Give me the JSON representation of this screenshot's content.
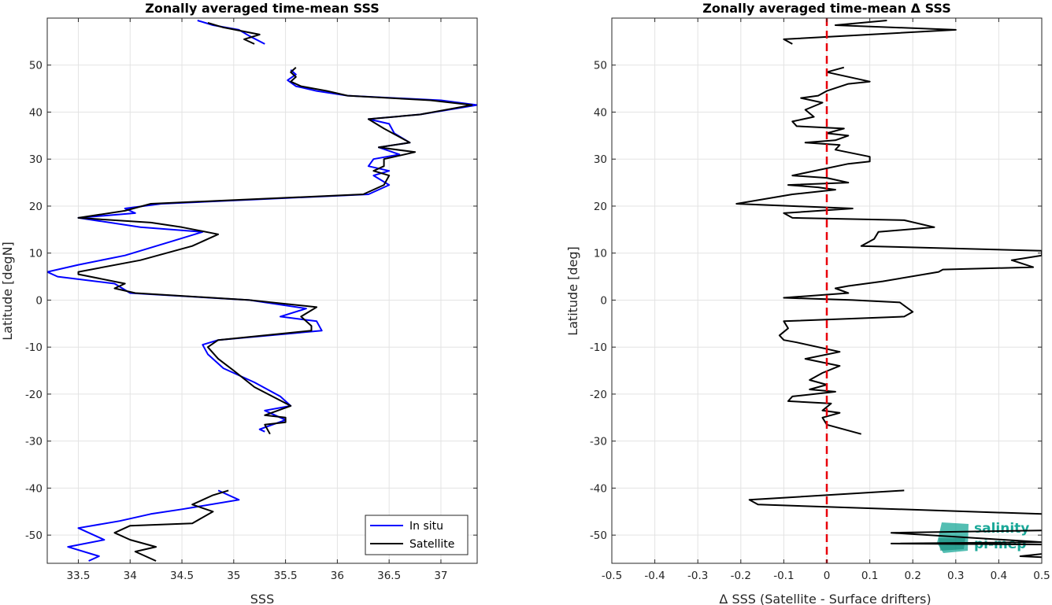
{
  "chart_data": [
    {
      "type": "line",
      "title": "Zonally averaged time-mean SSS",
      "xlabel": "SSS",
      "ylabel": "Latitude [degN]",
      "xlim": [
        33.2,
        37.35
      ],
      "ylim": [
        -56,
        60
      ],
      "xticks": [
        "33.5",
        "34",
        "34.5",
        "35",
        "35.5",
        "36",
        "36.5",
        "37"
      ],
      "xtick_values": [
        33.5,
        34,
        34.5,
        35,
        35.5,
        36,
        36.5,
        37
      ],
      "yticks": [
        "50",
        "40",
        "30",
        "20",
        "10",
        "0",
        "-10",
        "-20",
        "-30",
        "-40",
        "-50"
      ],
      "ytick_values": [
        50,
        40,
        30,
        20,
        10,
        0,
        -10,
        -20,
        -30,
        -40,
        -50
      ],
      "grid": true,
      "legend": "bottom-right",
      "series": [
        {
          "name": "In situ",
          "color": "#0000ff",
          "segments": [
            [
              [
                34.65,
                59.5
              ],
              [
                34.8,
                58.5
              ],
              [
                35.05,
                57.5
              ],
              [
                35.15,
                56.2
              ],
              [
                35.3,
                54.5
              ]
            ],
            [
              [
                35.55,
                49.0
              ],
              [
                35.6,
                48.0
              ],
              [
                35.52,
                46.8
              ],
              [
                35.6,
                45.5
              ],
              [
                35.8,
                44.5
              ],
              [
                36.1,
                43.5
              ],
              [
                37.0,
                42.5
              ],
              [
                37.35,
                41.5
              ],
              [
                36.8,
                39.5
              ],
              [
                36.3,
                38.5
              ],
              [
                36.5,
                37.5
              ],
              [
                36.55,
                35.5
              ],
              [
                36.7,
                33.5
              ],
              [
                36.4,
                32.5
              ],
              [
                36.6,
                31.0
              ],
              [
                36.35,
                30.0
              ],
              [
                36.3,
                28.5
              ],
              [
                36.5,
                27.5
              ],
              [
                36.35,
                26.5
              ],
              [
                36.5,
                24.5
              ],
              [
                36.3,
                22.5
              ],
              [
                34.3,
                20.5
              ],
              [
                33.95,
                19.5
              ],
              [
                34.05,
                18.5
              ],
              [
                33.5,
                17.5
              ],
              [
                34.1,
                15.5
              ],
              [
                34.7,
                14.5
              ],
              [
                34.4,
                12.5
              ],
              [
                33.95,
                9.5
              ],
              [
                33.5,
                7.5
              ],
              [
                33.2,
                6.0
              ],
              [
                33.3,
                5.0
              ],
              [
                33.85,
                3.5
              ],
              [
                34.0,
                1.5
              ],
              [
                35.15,
                0.0
              ],
              [
                35.7,
                -1.8
              ],
              [
                35.45,
                -3.5
              ],
              [
                35.8,
                -4.5
              ],
              [
                35.85,
                -6.5
              ],
              [
                34.85,
                -8.5
              ],
              [
                34.7,
                -9.5
              ],
              [
                34.75,
                -11.5
              ],
              [
                34.9,
                -14.5
              ],
              [
                35.2,
                -17.5
              ],
              [
                35.45,
                -20.5
              ],
              [
                35.55,
                -22.5
              ],
              [
                35.3,
                -23.5
              ],
              [
                35.5,
                -25.5
              ],
              [
                35.25,
                -27.5
              ],
              [
                35.3,
                -28.0
              ]
            ],
            [
              [
                34.85,
                -40.5
              ],
              [
                35.05,
                -42.5
              ],
              [
                34.5,
                -44.5
              ],
              [
                34.2,
                -45.5
              ],
              [
                33.9,
                -47.0
              ],
              [
                33.5,
                -48.5
              ],
              [
                33.75,
                -51.0
              ],
              [
                33.4,
                -52.5
              ],
              [
                33.7,
                -54.5
              ],
              [
                33.6,
                -55.5
              ]
            ]
          ]
        },
        {
          "name": "Satellite",
          "color": "#000000",
          "segments": [
            [
              [
                34.75,
                59.0
              ],
              [
                34.9,
                58.0
              ],
              [
                35.25,
                56.5
              ],
              [
                35.1,
                55.5
              ],
              [
                35.2,
                54.5
              ]
            ],
            [
              [
                35.6,
                49.5
              ],
              [
                35.55,
                48.5
              ],
              [
                35.6,
                47.5
              ],
              [
                35.55,
                46.5
              ],
              [
                35.65,
                45.5
              ],
              [
                35.9,
                44.5
              ],
              [
                36.1,
                43.5
              ],
              [
                36.9,
                42.5
              ],
              [
                37.3,
                41.5
              ],
              [
                36.8,
                39.5
              ],
              [
                36.3,
                38.5
              ],
              [
                36.45,
                36.5
              ],
              [
                36.7,
                33.5
              ],
              [
                36.4,
                32.5
              ],
              [
                36.75,
                31.5
              ],
              [
                36.45,
                30.0
              ],
              [
                36.45,
                28.5
              ],
              [
                36.35,
                27.5
              ],
              [
                36.5,
                26.5
              ],
              [
                36.45,
                24.5
              ],
              [
                36.25,
                22.5
              ],
              [
                34.2,
                20.5
              ],
              [
                33.95,
                19.0
              ],
              [
                33.5,
                17.5
              ],
              [
                34.2,
                16.5
              ],
              [
                34.5,
                15.5
              ],
              [
                34.85,
                14.0
              ],
              [
                34.6,
                11.5
              ],
              [
                34.1,
                8.5
              ],
              [
                33.5,
                6.0
              ],
              [
                33.5,
                5.5
              ],
              [
                33.95,
                3.5
              ],
              [
                33.85,
                2.5
              ],
              [
                34.05,
                1.5
              ],
              [
                35.15,
                0.0
              ],
              [
                35.8,
                -1.5
              ],
              [
                35.65,
                -3.5
              ],
              [
                35.75,
                -5.5
              ],
              [
                35.75,
                -6.5
              ],
              [
                34.85,
                -8.5
              ],
              [
                34.75,
                -10.0
              ],
              [
                34.85,
                -12.5
              ],
              [
                35.0,
                -15.0
              ],
              [
                35.2,
                -18.5
              ],
              [
                35.55,
                -22.5
              ],
              [
                35.3,
                -24.5
              ],
              [
                35.5,
                -25.0
              ],
              [
                35.5,
                -26.0
              ],
              [
                35.3,
                -26.5
              ],
              [
                35.35,
                -28.5
              ]
            ],
            [
              [
                34.95,
                -40.5
              ],
              [
                34.8,
                -41.5
              ],
              [
                34.6,
                -43.5
              ],
              [
                34.8,
                -45.0
              ],
              [
                34.6,
                -47.5
              ],
              [
                34.0,
                -48.0
              ],
              [
                33.85,
                -49.5
              ],
              [
                34.0,
                -51.0
              ],
              [
                34.25,
                -52.5
              ],
              [
                34.05,
                -53.5
              ],
              [
                34.25,
                -55.5
              ]
            ]
          ]
        }
      ]
    },
    {
      "type": "line",
      "title": "Zonally averaged time-mean Δ SSS",
      "xlabel": "Δ SSS (Satellite - Surface drifters)",
      "ylabel": "Latitude [deg]",
      "xlim": [
        -0.5,
        0.5
      ],
      "ylim": [
        -56,
        60
      ],
      "xticks": [
        "-0.5",
        "-0.4",
        "-0.3",
        "-0.2",
        "-0.1",
        "0",
        "0.1",
        "0.2",
        "0.3",
        "0.4",
        "0.5"
      ],
      "xtick_values": [
        -0.5,
        -0.4,
        -0.3,
        -0.2,
        -0.1,
        0,
        0.1,
        0.2,
        0.3,
        0.4,
        0.5
      ],
      "yticks": [
        "50",
        "40",
        "30",
        "20",
        "10",
        "0",
        "-10",
        "-20",
        "-30",
        "-40",
        "-50"
      ],
      "ytick_values": [
        50,
        40,
        30,
        20,
        10,
        0,
        -10,
        -20,
        -30,
        -40,
        -50
      ],
      "grid": true,
      "zero_line_color": "#e8000b",
      "series": [
        {
          "color": "#000000",
          "segments": [
            [
              [
                0.14,
                59.5
              ],
              [
                0.02,
                58.5
              ],
              [
                0.3,
                57.5
              ],
              [
                -0.1,
                55.5
              ],
              [
                -0.08,
                54.5
              ]
            ],
            [
              [
                0.04,
                49.5
              ],
              [
                0.0,
                48.5
              ],
              [
                0.05,
                47.5
              ],
              [
                0.1,
                46.5
              ],
              [
                0.05,
                46.0
              ],
              [
                0.0,
                44.5
              ],
              [
                -0.02,
                43.5
              ],
              [
                -0.06,
                43.0
              ],
              [
                -0.01,
                42.0
              ],
              [
                -0.05,
                40.5
              ],
              [
                -0.03,
                39.0
              ],
              [
                -0.08,
                38.0
              ],
              [
                -0.07,
                37.0
              ],
              [
                0.04,
                36.5
              ],
              [
                0.0,
                35.5
              ],
              [
                0.05,
                35.0
              ],
              [
                0.02,
                34.0
              ],
              [
                -0.05,
                33.5
              ],
              [
                0.03,
                33.0
              ],
              [
                0.02,
                32.0
              ],
              [
                0.1,
                30.5
              ],
              [
                0.1,
                29.5
              ],
              [
                0.05,
                29.0
              ],
              [
                -0.08,
                26.5
              ],
              [
                0.0,
                26.0
              ],
              [
                0.05,
                25.0
              ],
              [
                -0.09,
                24.5
              ],
              [
                -0.02,
                24.0
              ],
              [
                0.02,
                23.5
              ],
              [
                -0.08,
                22.5
              ],
              [
                -0.21,
                20.5
              ],
              [
                0.06,
                19.5
              ],
              [
                -0.1,
                18.5
              ],
              [
                -0.08,
                17.5
              ],
              [
                0.18,
                17.0
              ],
              [
                0.25,
                15.5
              ],
              [
                0.12,
                14.5
              ],
              [
                0.11,
                13.0
              ],
              [
                0.08,
                11.5
              ],
              [
                0.5,
                10.5
              ],
              [
                0.5,
                9.5
              ],
              [
                0.43,
                8.5
              ],
              [
                0.48,
                7.0
              ],
              [
                0.27,
                6.5
              ],
              [
                0.26,
                6.0
              ],
              [
                0.13,
                4.0
              ],
              [
                0.05,
                3.0
              ],
              [
                0.02,
                2.5
              ],
              [
                0.05,
                1.5
              ],
              [
                -0.1,
                0.5
              ],
              [
                0.06,
                0.0
              ],
              [
                0.17,
                -0.5
              ],
              [
                0.2,
                -2.5
              ],
              [
                0.18,
                -3.5
              ],
              [
                -0.1,
                -4.5
              ],
              [
                -0.09,
                -6.0
              ],
              [
                -0.11,
                -7.5
              ],
              [
                -0.1,
                -8.5
              ],
              [
                -0.07,
                -9.0
              ],
              [
                0.03,
                -11.0
              ],
              [
                -0.05,
                -12.5
              ],
              [
                0.03,
                -14.0
              ],
              [
                -0.01,
                -15.5
              ],
              [
                -0.04,
                -17.0
              ],
              [
                0.0,
                -18.0
              ],
              [
                -0.04,
                -19.0
              ],
              [
                0.02,
                -19.5
              ],
              [
                -0.08,
                -20.5
              ],
              [
                -0.09,
                -21.5
              ],
              [
                0.01,
                -22.0
              ],
              [
                -0.01,
                -23.5
              ],
              [
                0.03,
                -24.0
              ],
              [
                -0.01,
                -25.0
              ],
              [
                0.0,
                -26.5
              ],
              [
                0.08,
                -28.5
              ]
            ],
            [
              [
                0.18,
                -40.5
              ],
              [
                -0.18,
                -42.5
              ],
              [
                -0.16,
                -43.5
              ],
              [
                0.5,
                -45.5
              ]
            ],
            [
              [
                0.5,
                -49.0
              ],
              [
                0.15,
                -49.5
              ],
              [
                0.5,
                -51.5
              ],
              [
                0.15,
                -51.8
              ],
              [
                0.5,
                -52.0
              ]
            ],
            [
              [
                0.5,
                -54.0
              ],
              [
                0.45,
                -54.5
              ],
              [
                0.5,
                -54.7
              ]
            ]
          ]
        }
      ]
    }
  ],
  "legend": {
    "items": [
      "In situ",
      "Satellite"
    ]
  },
  "logo": {
    "line1": "salinity",
    "line2": "pi-mep"
  }
}
